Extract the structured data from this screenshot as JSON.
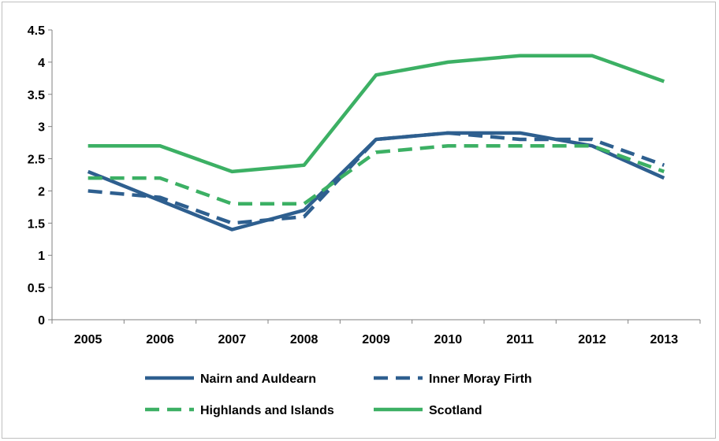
{
  "chart_data": {
    "type": "line",
    "title": "",
    "xlabel": "",
    "ylabel": "",
    "categories": [
      "2005",
      "2006",
      "2007",
      "2008",
      "2009",
      "2010",
      "2011",
      "2012",
      "2013"
    ],
    "ylim": [
      0,
      4.5
    ],
    "yticks": [
      "0",
      "0.5",
      "1",
      "1.5",
      "2",
      "2.5",
      "3",
      "3.5",
      "4",
      "4.5"
    ],
    "grid": false,
    "legend_position": "bottom",
    "series": [
      {
        "name": "Nairn and Auldearn",
        "color": "#2e5f8f",
        "dash": "solid",
        "values": [
          2.3,
          1.85,
          1.4,
          1.7,
          2.8,
          2.9,
          2.9,
          2.7,
          2.2
        ]
      },
      {
        "name": "Inner Moray Firth",
        "color": "#2e5f8f",
        "dash": "dashed",
        "values": [
          2.0,
          1.9,
          1.5,
          1.6,
          2.8,
          2.9,
          2.8,
          2.8,
          2.4
        ]
      },
      {
        "name": "Highlands and Islands",
        "color": "#3cb064",
        "dash": "dashed",
        "values": [
          2.2,
          2.2,
          1.8,
          1.8,
          2.6,
          2.7,
          2.7,
          2.7,
          2.3
        ]
      },
      {
        "name": "Scotland",
        "color": "#3cb064",
        "dash": "solid",
        "values": [
          2.7,
          2.7,
          2.3,
          2.4,
          3.8,
          4.0,
          4.1,
          4.1,
          3.7
        ]
      }
    ]
  }
}
